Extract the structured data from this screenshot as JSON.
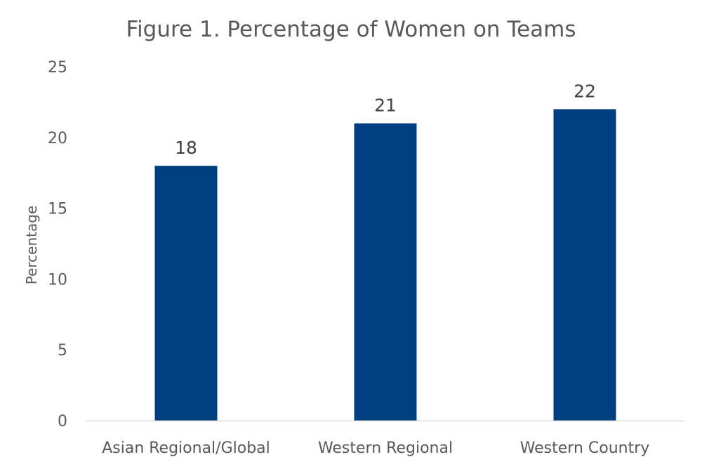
{
  "chart_data": {
    "type": "bar",
    "title": "Figure 1. Percentage of Women on Teams",
    "xlabel": "",
    "ylabel": "Percentage",
    "categories": [
      "Asian Regional/Global",
      "Western Regional",
      "Western Country"
    ],
    "values": [
      18,
      21,
      22
    ],
    "data_labels": [
      "18",
      "21",
      "22"
    ],
    "ylim": [
      0,
      25
    ],
    "yticks": [
      0,
      5,
      10,
      15,
      20,
      25
    ],
    "grid": false,
    "legend": "none",
    "bar_color": "#003f7f",
    "axis_color": "#d9d9d9"
  }
}
